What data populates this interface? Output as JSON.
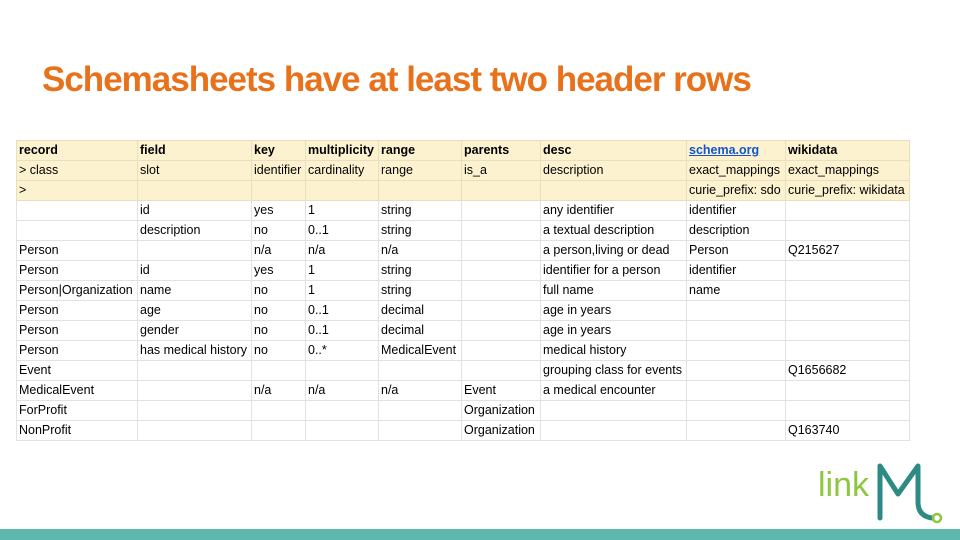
{
  "slide": {
    "title": "Schemasheets have at least two header rows"
  },
  "table": {
    "columns": [
      "record",
      "field",
      "key",
      "multiplicity",
      "range",
      "parents",
      "desc",
      "schema.org",
      "wikidata"
    ],
    "header_rows": [
      [
        "> class",
        "slot",
        "identifier",
        "cardinality",
        "range",
        "is_a",
        "description",
        "exact_mappings",
        "exact_mappings"
      ],
      [
        ">",
        "",
        "",
        "",
        "",
        "",
        "",
        "curie_prefix: sdo",
        "curie_prefix: wikidata"
      ]
    ],
    "rows": [
      [
        "",
        "id",
        "yes",
        "1",
        "string",
        "",
        "any identifier",
        "identifier",
        ""
      ],
      [
        "",
        "description",
        "no",
        "0..1",
        "string",
        "",
        "a textual description",
        "description",
        ""
      ],
      [
        "Person",
        "",
        "n/a",
        "n/a",
        "n/a",
        "",
        "a person,living or dead",
        "Person",
        "Q215627"
      ],
      [
        "Person",
        "id",
        "yes",
        "1",
        "string",
        "",
        "identifier for a person",
        "identifier",
        ""
      ],
      [
        "Person|Organization",
        "name",
        "no",
        "1",
        "string",
        "",
        "full name",
        "name",
        ""
      ],
      [
        "Person",
        "age",
        "no",
        "0..1",
        "decimal",
        "",
        "age in years",
        "",
        ""
      ],
      [
        "Person",
        "gender",
        "no",
        "0..1",
        "decimal",
        "",
        "age in years",
        "",
        ""
      ],
      [
        "Person",
        "has medical history",
        "no",
        "0..*",
        "MedicalEvent",
        "",
        "medical history",
        "",
        ""
      ],
      [
        "Event",
        "",
        "",
        "",
        "",
        "",
        "grouping class for events",
        "",
        "Q1656682"
      ],
      [
        "MedicalEvent",
        "",
        "n/a",
        "n/a",
        "n/a",
        "Event",
        "a medical encounter",
        "",
        ""
      ],
      [
        "ForProfit",
        "",
        "",
        "",
        "",
        "Organization",
        "",
        "",
        ""
      ],
      [
        "NonProfit",
        "",
        "",
        "",
        "",
        "Organization",
        "",
        "",
        "Q163740"
      ]
    ]
  },
  "logo": {
    "text": "link",
    "text_color": "#8dc63f",
    "mark_color": "#2e8b84",
    "accent_color": "#8dc63f"
  },
  "colors": {
    "title": "#e8711b",
    "header_fill": "#fdf2d0",
    "link": "#1155cc",
    "bottom_bar": "#5fb8ad"
  }
}
